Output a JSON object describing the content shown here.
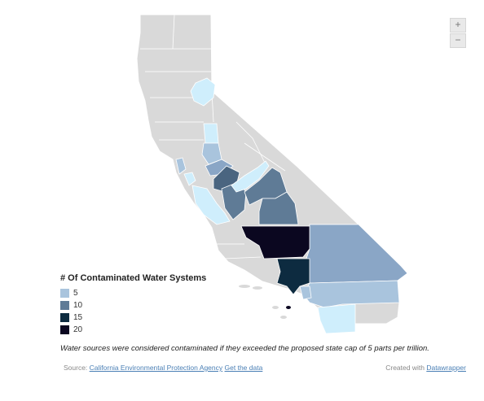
{
  "colors": {
    "none": "#d9d9d9",
    "border": "#ffffff",
    "c1": "#cfeefc",
    "c2": "#a9c4dd",
    "c3": "#8aa6c6",
    "c4": "#5f7b96",
    "c5": "#4a6580",
    "c6": "#0d2b40",
    "c7": "#0b0720"
  },
  "legend": {
    "title": "# Of Contaminated Water Systems",
    "items": [
      {
        "label": "5",
        "color": "#a9c4dd"
      },
      {
        "label": "10",
        "color": "#5f7b96"
      },
      {
        "label": "15",
        "color": "#0d2b40"
      },
      {
        "label": "20",
        "color": "#0b0720"
      }
    ]
  },
  "zoom": {
    "in_label": "+",
    "out_label": "−"
  },
  "note": "Water sources were considered contaminated if they exceeded the proposed state cap of 5 parts per trillion.",
  "footer": {
    "source_prefix": "Source: ",
    "source_link": "California Environmental Protection Agency",
    "get_data": "Get the data",
    "created_prefix": "Created with ",
    "created_link": "Datawrapper"
  }
}
